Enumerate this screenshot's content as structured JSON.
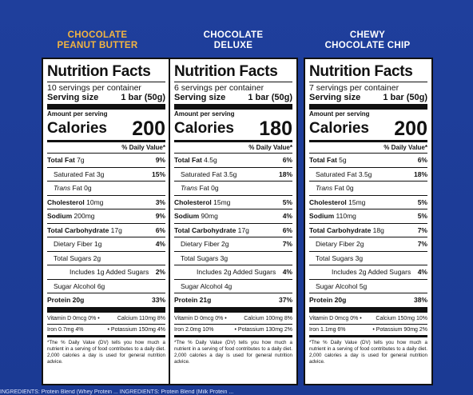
{
  "colors": {
    "background": "#1f3f9c",
    "title_pb": "#f2b441",
    "title_other": "#ffffff"
  },
  "panels": [
    {
      "title_line1": "CHOCOLATE",
      "title_line2": "PEANUT BUTTER",
      "nf": "Nutrition Facts",
      "servings": "10 servings per container",
      "serving_size_label": "Serving size",
      "serving_size_value": "1 bar (50g)",
      "amount": "Amount per serving",
      "calories_label": "Calories",
      "calories": "200",
      "dv": "% Daily Value*",
      "total_fat": "Total Fat",
      "total_fat_amt": "7g",
      "total_fat_pct": "9%",
      "sat_fat": "Saturated Fat 3g",
      "sat_fat_pct": "15%",
      "trans_fat_i": "Trans",
      "trans_fat": "Fat 0g",
      "chol": "Cholesterol",
      "chol_amt": "10mg",
      "chol_pct": "3%",
      "sodium": "Sodium",
      "sodium_amt": "200mg",
      "sodium_pct": "9%",
      "carb": "Total Carbohydrate",
      "carb_amt": "17g",
      "carb_pct": "6%",
      "fiber": "Dietary Fiber 1g",
      "fiber_pct": "4%",
      "sugars": "Total Sugars 2g",
      "added": "Includes 1g Added Sugars",
      "added_pct": "2%",
      "alcohol": "Sugar Alcohol 6g",
      "protein": "Protein 20g",
      "protein_pct": "33%",
      "vit_d": "Vitamin D 0mcg 0% •",
      "calcium": "Calcium 110mg 8%",
      "iron": "Iron 0.7mg 4%",
      "potassium": "• Potassium 150mg 4%",
      "footnote": "*The % Daily Value (DV) tells you how much a nutrient in a serving of food contributes to a daily diet. 2,000 calories a day is used for general nutrition advice."
    },
    {
      "title_line1": "CHOCOLATE",
      "title_line2": "DELUXE",
      "nf": "Nutrition Facts",
      "servings": "6 servings per container",
      "serving_size_label": "Serving size",
      "serving_size_value": "1 bar (50g)",
      "amount": "Amount per serving",
      "calories_label": "Calories",
      "calories": "180",
      "dv": "% Daily Value*",
      "total_fat": "Total Fat",
      "total_fat_amt": "4.5g",
      "total_fat_pct": "6%",
      "sat_fat": "Saturated Fat 3.5g",
      "sat_fat_pct": "18%",
      "trans_fat_i": "Trans",
      "trans_fat": "Fat 0g",
      "chol": "Cholesterol",
      "chol_amt": "15mg",
      "chol_pct": "5%",
      "sodium": "Sodium",
      "sodium_amt": "90mg",
      "sodium_pct": "4%",
      "carb": "Total Carbohydrate",
      "carb_amt": "17g",
      "carb_pct": "6%",
      "fiber": "Dietary Fiber 2g",
      "fiber_pct": "7%",
      "sugars": "Total Sugars 3g",
      "added": "Includes 2g Added Sugars",
      "added_pct": "4%",
      "alcohol": "Sugar Alcohol 4g",
      "protein": "Protein 21g",
      "protein_pct": "37%",
      "vit_d": "Vitamin D 0mcg 0% •",
      "calcium": "Calcium 100mg 8%",
      "iron": "Iron 2.0mg 10%",
      "potassium": "• Potassium 130mg 2%",
      "footnote": "*The % Daily Value (DV) tells you how much a nutrient in a serving of food contributes to a daily diet. 2,000 calories a day is used for general nutrition advice."
    },
    {
      "title_line1": "CHEWY",
      "title_line2": "CHOCOLATE CHIP",
      "nf": "Nutrition Facts",
      "servings": "7 servings per container",
      "serving_size_label": "Serving size",
      "serving_size_value": "1 bar (50g)",
      "amount": "Amount per serving",
      "calories_label": "Calories",
      "calories": "200",
      "dv": "% Daily Value*",
      "total_fat": "Total Fat",
      "total_fat_amt": "5g",
      "total_fat_pct": "6%",
      "sat_fat": "Saturated Fat 3.5g",
      "sat_fat_pct": "18%",
      "trans_fat_i": "Trans",
      "trans_fat": "Fat 0g",
      "chol": "Cholesterol",
      "chol_amt": "15mg",
      "chol_pct": "5%",
      "sodium": "Sodium",
      "sodium_amt": "110mg",
      "sodium_pct": "5%",
      "carb": "Total Carbohydrate",
      "carb_amt": "18g",
      "carb_pct": "7%",
      "fiber": "Dietary Fiber 2g",
      "fiber_pct": "7%",
      "sugars": "Total Sugars 3g",
      "added": "Includes 2g Added Sugars",
      "added_pct": "4%",
      "alcohol": "Sugar Alcohol 5g",
      "protein": "Protein 20g",
      "protein_pct": "38%",
      "vit_d": "Vitamin D 0mcg 0% •",
      "calcium": "Calcium 150mg 10%",
      "iron": "Iron 1.1mg 6%",
      "potassium": "• Potassium 90mg 2%",
      "footnote": "*The % Daily Value (DV) tells you how much a nutrient in a serving of food contributes to a daily diet. 2,000 calories a day is used for general nutrition advice."
    }
  ],
  "ingredients_strip": "INGREDIENTS: Protein Blend (Whey Protein ... INGREDIENTS: Protein Blend (Milk Protein ..."
}
